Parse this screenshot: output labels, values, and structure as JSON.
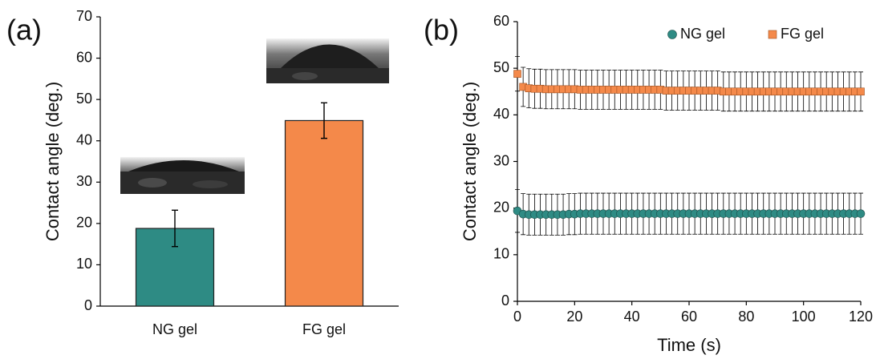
{
  "chart_data": [
    {
      "type": "bar",
      "label": "(a)",
      "ylabel": "Contact angle (deg.)",
      "categories": [
        "NG gel",
        "FG gel"
      ],
      "values": [
        18.8,
        44.9
      ],
      "errors": [
        4.4,
        4.3
      ],
      "colors": [
        "#2e8b84",
        "#f4894a"
      ],
      "ylim": [
        0,
        70
      ],
      "yticks": [
        0,
        10,
        20,
        30,
        40,
        50,
        60,
        70
      ]
    },
    {
      "type": "scatter",
      "label": "(b)",
      "xlabel": "Time (s)",
      "ylabel": "Contact angle (deg.)",
      "x": [
        0,
        2,
        4,
        6,
        8,
        10,
        12,
        14,
        16,
        18,
        20,
        22,
        24,
        26,
        28,
        30,
        32,
        34,
        36,
        38,
        40,
        42,
        44,
        46,
        48,
        50,
        52,
        54,
        56,
        58,
        60,
        62,
        64,
        66,
        68,
        70,
        72,
        74,
        76,
        78,
        80,
        82,
        84,
        86,
        88,
        90,
        92,
        94,
        96,
        98,
        100,
        102,
        104,
        106,
        108,
        110,
        112,
        114,
        116,
        118,
        120
      ],
      "series": [
        {
          "name": "NG gel",
          "color": "#2e8b84",
          "marker": "circle",
          "values": [
            19.4,
            18.7,
            18.6,
            18.6,
            18.6,
            18.6,
            18.6,
            18.6,
            18.6,
            18.7,
            18.7,
            18.8,
            18.8,
            18.8,
            18.8,
            18.8,
            18.8,
            18.8,
            18.8,
            18.8,
            18.8,
            18.8,
            18.8,
            18.8,
            18.8,
            18.8,
            18.8,
            18.8,
            18.8,
            18.8,
            18.8,
            18.8,
            18.8,
            18.8,
            18.8,
            18.8,
            18.8,
            18.8,
            18.8,
            18.8,
            18.8,
            18.8,
            18.8,
            18.8,
            18.8,
            18.8,
            18.8,
            18.8,
            18.8,
            18.8,
            18.8,
            18.8,
            18.8,
            18.8,
            18.8,
            18.8,
            18.8,
            18.8,
            18.8,
            18.8,
            18.8
          ],
          "errors": [
            4.6,
            4.4,
            4.4,
            4.4,
            4.4,
            4.4,
            4.4,
            4.4,
            4.4,
            4.4,
            4.4,
            4.4,
            4.4,
            4.4,
            4.4,
            4.4,
            4.4,
            4.4,
            4.4,
            4.4,
            4.4,
            4.4,
            4.4,
            4.4,
            4.4,
            4.4,
            4.4,
            4.4,
            4.4,
            4.4,
            4.4,
            4.4,
            4.4,
            4.4,
            4.4,
            4.4,
            4.4,
            4.4,
            4.4,
            4.4,
            4.4,
            4.4,
            4.4,
            4.4,
            4.4,
            4.4,
            4.4,
            4.4,
            4.4,
            4.4,
            4.4,
            4.4,
            4.4,
            4.4,
            4.4,
            4.4,
            4.4,
            4.4,
            4.4,
            4.4,
            4.4
          ]
        },
        {
          "name": "FG gel",
          "color": "#f4894a",
          "marker": "square",
          "values": [
            48.8,
            46.0,
            45.7,
            45.6,
            45.6,
            45.5,
            45.5,
            45.5,
            45.5,
            45.5,
            45.5,
            45.4,
            45.4,
            45.4,
            45.4,
            45.4,
            45.4,
            45.4,
            45.4,
            45.4,
            45.4,
            45.4,
            45.4,
            45.4,
            45.4,
            45.4,
            45.2,
            45.2,
            45.2,
            45.2,
            45.2,
            45.2,
            45.2,
            45.2,
            45.2,
            45.2,
            45.0,
            45.0,
            45.0,
            45.0,
            45.0,
            45.0,
            45.0,
            45.0,
            45.0,
            45.0,
            45.0,
            45.0,
            45.0,
            45.0,
            45.0,
            45.0,
            45.0,
            45.0,
            45.0,
            45.0,
            45.0,
            45.0,
            45.0,
            45.0,
            45.0
          ],
          "errors": [
            3.7,
            4.2,
            4.2,
            4.2,
            4.2,
            4.2,
            4.2,
            4.2,
            4.2,
            4.2,
            4.2,
            4.2,
            4.2,
            4.2,
            4.2,
            4.2,
            4.2,
            4.2,
            4.2,
            4.2,
            4.2,
            4.2,
            4.2,
            4.2,
            4.2,
            4.2,
            4.2,
            4.2,
            4.2,
            4.2,
            4.2,
            4.2,
            4.2,
            4.2,
            4.2,
            4.2,
            4.2,
            4.2,
            4.2,
            4.2,
            4.2,
            4.2,
            4.2,
            4.2,
            4.2,
            4.2,
            4.2,
            4.2,
            4.2,
            4.2,
            4.2,
            4.2,
            4.2,
            4.2,
            4.2,
            4.2,
            4.2,
            4.2,
            4.2,
            4.2,
            4.2
          ]
        }
      ],
      "legend": "upper right",
      "xlim": [
        0,
        120
      ],
      "xticks": [
        0,
        20,
        40,
        60,
        80,
        100,
        120
      ],
      "ylim": [
        0,
        60
      ],
      "yticks": [
        0,
        10,
        20,
        30,
        40,
        50,
        60
      ]
    }
  ]
}
